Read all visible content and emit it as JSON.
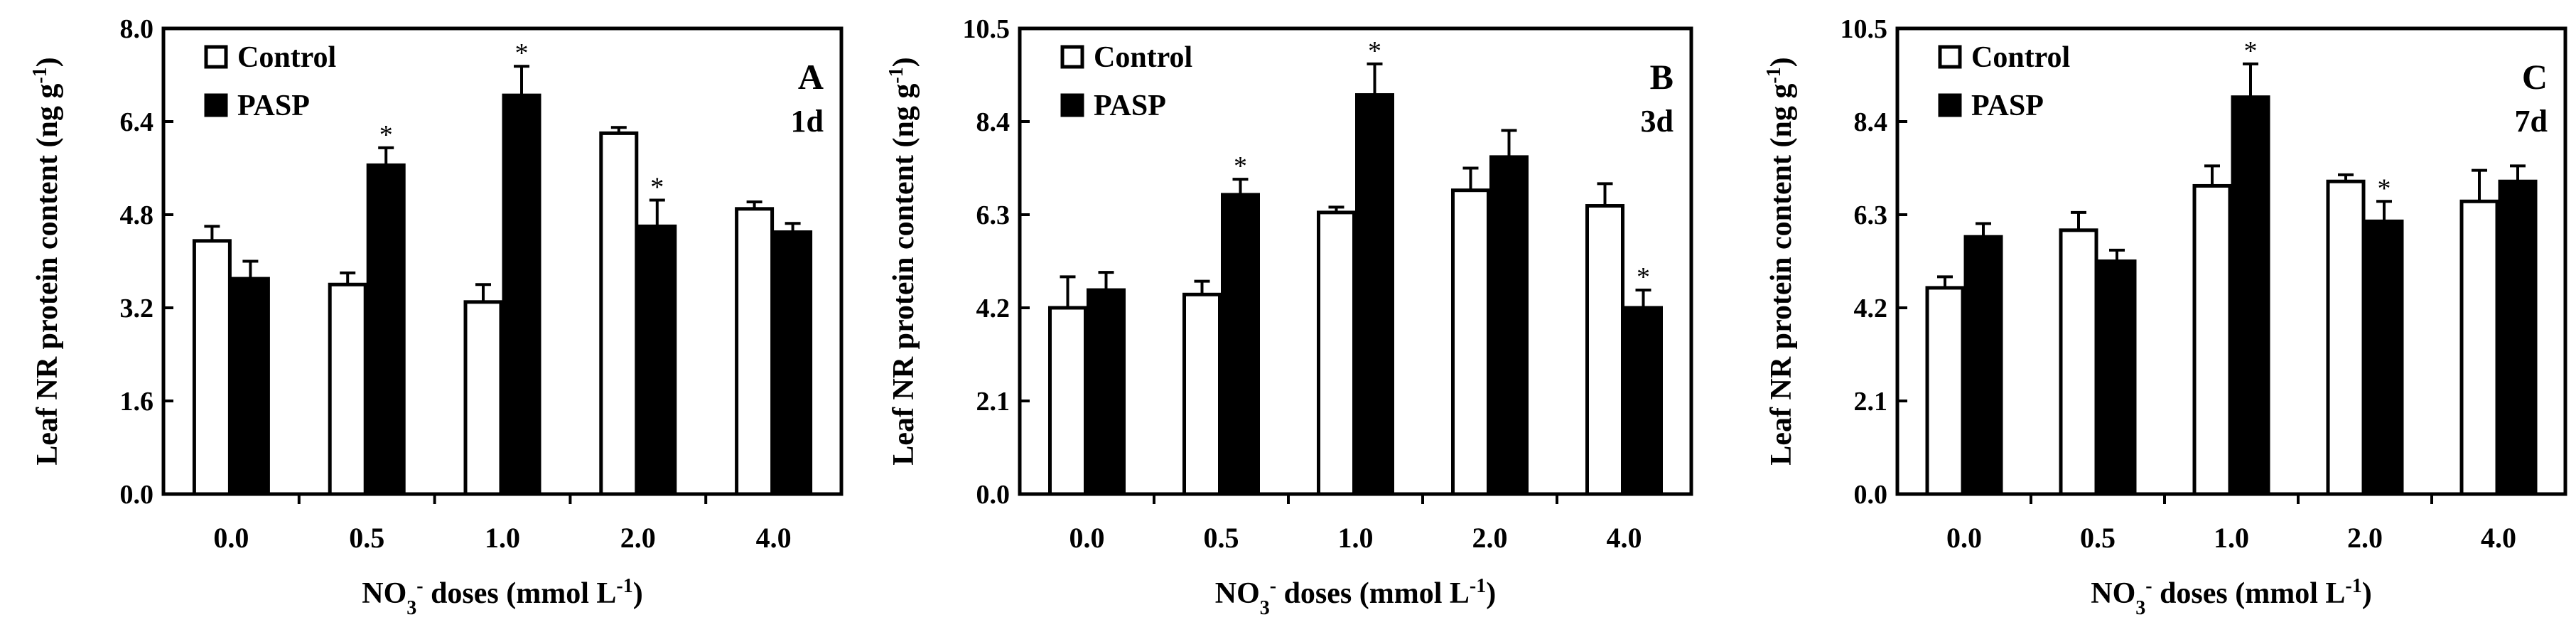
{
  "chart_data": [
    {
      "type": "bar",
      "panel": "A",
      "time_label": "1d",
      "ylabel": "Leaf NR protein content (ng g",
      "ylabel_sup": "-1",
      "ylabel_end": ")",
      "xlabel": {
        "pre": "NO",
        "sub": "3",
        "sup": "-",
        "mid": " doses (mmol L",
        "sup2": "-1",
        "end": ")"
      },
      "categories": [
        "0.0",
        "0.5",
        "1.0",
        "2.0",
        "4.0"
      ],
      "ylim": [
        0,
        8.0
      ],
      "yticks": [
        "0.0",
        "1.6",
        "3.2",
        "4.8",
        "6.4",
        "8.0"
      ],
      "legend_position": "top-left",
      "series": [
        {
          "name": "Control",
          "color": "#ffffff",
          "values": [
            4.35,
            3.6,
            3.3,
            6.2,
            4.9
          ],
          "errors": [
            0.25,
            0.2,
            0.3,
            0.1,
            0.12
          ],
          "significant": [
            false,
            false,
            false,
            false,
            false
          ]
        },
        {
          "name": "PASP",
          "color": "#000000",
          "values": [
            3.7,
            5.65,
            6.85,
            4.6,
            4.5
          ],
          "errors": [
            0.3,
            0.3,
            0.5,
            0.45,
            0.15
          ],
          "significant": [
            false,
            true,
            true,
            true,
            false
          ]
        }
      ],
      "significance_marker": "*"
    },
    {
      "type": "bar",
      "panel": "B",
      "time_label": "3d",
      "ylabel": "Leaf NR protein content (ng g",
      "ylabel_sup": "-1",
      "ylabel_end": ")",
      "xlabel": {
        "pre": "NO",
        "sub": "3",
        "sup": "-",
        "mid": " doses (mmol L",
        "sup2": "-1",
        "end": ")"
      },
      "categories": [
        "0.0",
        "0.5",
        "1.0",
        "2.0",
        "4.0"
      ],
      "ylim": [
        0,
        10.5
      ],
      "yticks": [
        "0.0",
        "2.1",
        "4.2",
        "6.3",
        "8.4",
        "10.5"
      ],
      "legend_position": "top-left",
      "series": [
        {
          "name": "Control",
          "color": "#ffffff",
          "values": [
            4.2,
            4.5,
            6.35,
            6.85,
            6.5
          ],
          "errors": [
            0.7,
            0.3,
            0.12,
            0.5,
            0.5
          ],
          "significant": [
            false,
            false,
            false,
            false,
            false
          ]
        },
        {
          "name": "PASP",
          "color": "#000000",
          "values": [
            4.6,
            6.75,
            9.0,
            7.6,
            4.2
          ],
          "errors": [
            0.4,
            0.35,
            0.7,
            0.6,
            0.4
          ],
          "significant": [
            false,
            true,
            true,
            false,
            true
          ]
        }
      ],
      "significance_marker": "*"
    },
    {
      "type": "bar",
      "panel": "C",
      "time_label": "7d",
      "ylabel": "Leaf NR protein content (ng g",
      "ylabel_sup": "-1",
      "ylabel_end": ")",
      "xlabel": {
        "pre": "NO",
        "sub": "3",
        "sup": "-",
        "mid": " doses (mmol L",
        "sup2": "-1",
        "end": ")"
      },
      "categories": [
        "0.0",
        "0.5",
        "1.0",
        "2.0",
        "4.0"
      ],
      "ylim": [
        0,
        10.5
      ],
      "yticks": [
        "0.0",
        "2.1",
        "4.2",
        "6.3",
        "8.4",
        "10.5"
      ],
      "legend_position": "top-left",
      "series": [
        {
          "name": "Control",
          "color": "#ffffff",
          "values": [
            4.65,
            5.95,
            6.95,
            7.05,
            6.6
          ],
          "errors": [
            0.25,
            0.4,
            0.45,
            0.15,
            0.7
          ],
          "significant": [
            false,
            false,
            false,
            false,
            false
          ]
        },
        {
          "name": "PASP",
          "color": "#000000",
          "values": [
            5.8,
            5.25,
            8.95,
            6.15,
            7.05
          ],
          "errors": [
            0.3,
            0.25,
            0.75,
            0.45,
            0.35
          ],
          "significant": [
            false,
            false,
            true,
            true,
            false
          ]
        }
      ],
      "significance_marker": "*"
    }
  ]
}
